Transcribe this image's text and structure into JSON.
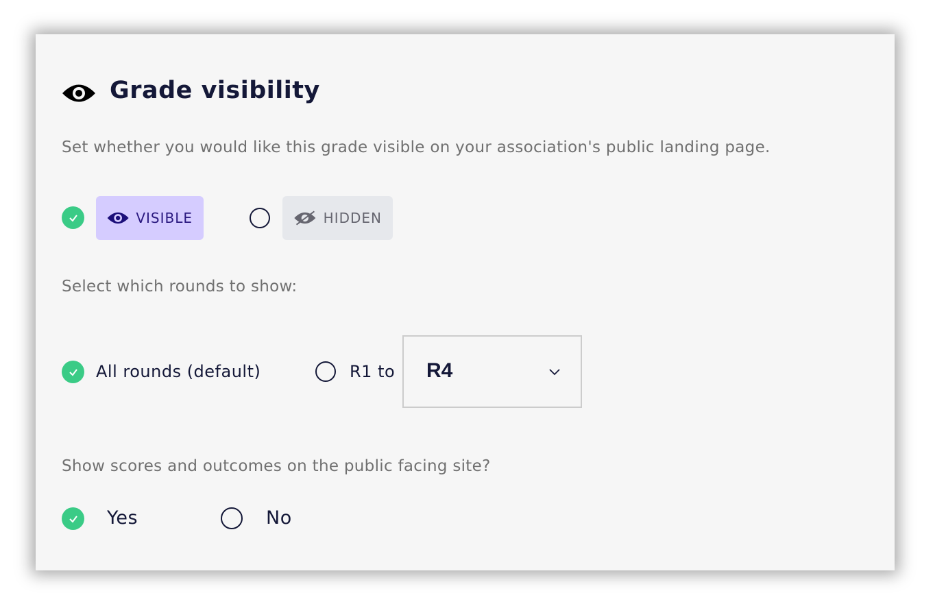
{
  "title": "Grade visibility",
  "description": "Set whether you would like this grade visible on your association's public landing page.",
  "visibility": {
    "options": [
      {
        "label": "VISIBLE",
        "selected": true
      },
      {
        "label": "HIDDEN",
        "selected": false
      }
    ]
  },
  "rounds": {
    "prompt": "Select which rounds to show:",
    "all_label": "All rounds (default)",
    "all_selected": true,
    "range_label": "R1 to",
    "range_selected": false,
    "range_value": "R4"
  },
  "scores": {
    "prompt": "Show scores and outcomes on the public facing site?",
    "yes_label": "Yes",
    "yes_selected": true,
    "no_label": "No",
    "no_selected": false
  },
  "colors": {
    "accent": "#3acb86",
    "visible_chip": "#d5ccff",
    "hidden_chip": "#e6e8ec",
    "text_dark": "#141838"
  }
}
